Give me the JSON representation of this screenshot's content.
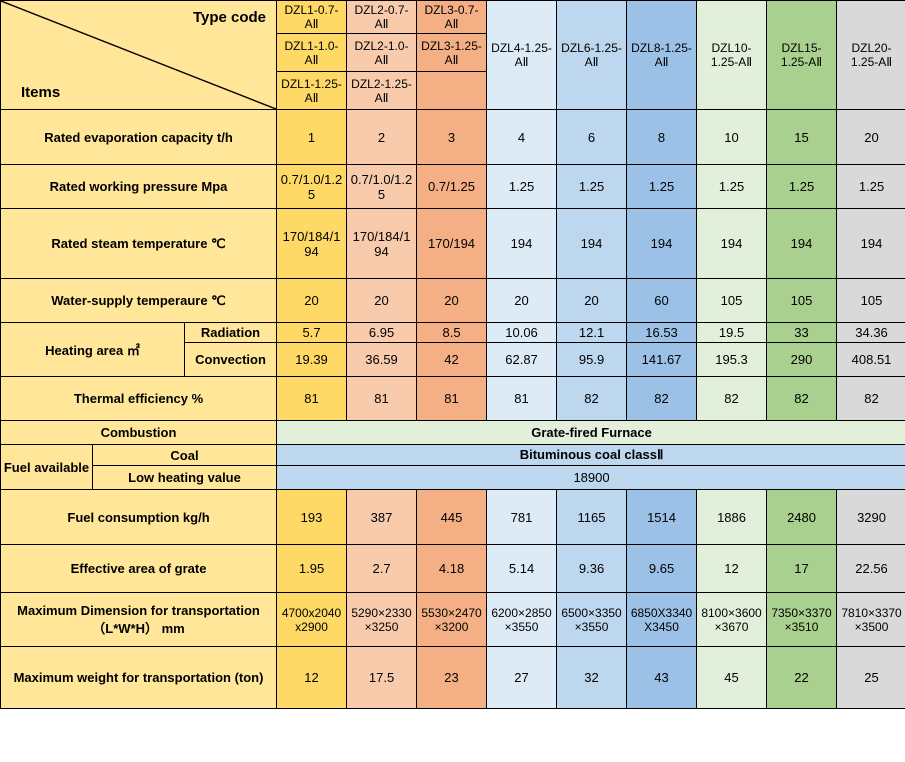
{
  "colors": {
    "label_bg": "#ffe699",
    "c1": "#ffd966",
    "c2": "#f8cbad",
    "c3": "#f4b084",
    "c4": "#ddebf7",
    "c5": "#bdd7ee",
    "c6": "#9bc2e6",
    "c7": "#e2efda",
    "c8": "#a9d08e",
    "c9": "#d9d9d9",
    "merge_blue": "#bdd7ee",
    "merge_green": "#e2efda"
  },
  "header": {
    "type_code": "Type code",
    "items": "Items",
    "h1": [
      "DZL1-0.7-AⅡ",
      "DZL2-0.7-AⅡ",
      "DZL3-0.7-AⅡ"
    ],
    "h2": [
      "DZL1-1.0-AⅡ",
      "DZL2-1.0-AⅡ",
      "DZL3-1.25-AⅡ"
    ],
    "h3": [
      "DZL1-1.25-AⅡ",
      "DZL2-1.25-AⅡ"
    ],
    "tall": [
      "DZL4-1.25-AⅡ",
      "DZL6-1.25-AⅡ",
      "DZL8-1.25-AⅡ",
      "DZL10-1.25-AⅡ",
      "DZL15-1.25-AⅡ",
      "DZL20-1.25-AⅡ"
    ]
  },
  "rows": {
    "evap_label": "Rated evaporation capacity t/h",
    "evap": [
      "1",
      "2",
      "3",
      "4",
      "6",
      "8",
      "10",
      "15",
      "20"
    ],
    "press_label": "Rated working pressure Mpa",
    "press": [
      "0.7/1.0/1.25",
      "0.7/1.0/1.25",
      "0.7/1.25",
      "1.25",
      "1.25",
      "1.25",
      "1.25",
      "1.25",
      "1.25"
    ],
    "steam_label": "Rated steam temperature ℃",
    "steam": [
      "170/184/194",
      "170/184/194",
      "170/194",
      "194",
      "194",
      "194",
      "194",
      "194",
      "194"
    ],
    "water_label": "Water-supply temperaure ℃",
    "water": [
      "20",
      "20",
      "20",
      "20",
      "20",
      "60",
      "105",
      "105",
      "105"
    ],
    "heat_label": "Heating area ㎡",
    "rad_label": "Radiation",
    "rad": [
      "5.7",
      "6.95",
      "8.5",
      "10.06",
      "12.1",
      "16.53",
      "19.5",
      "33",
      "34.36"
    ],
    "conv_label": "Convection",
    "conv": [
      "19.39",
      "36.59",
      "42",
      "62.87",
      "95.9",
      "141.67",
      "195.3",
      "290",
      "408.51"
    ],
    "eff_label": "Thermal efficiency  %",
    "eff": [
      "81",
      "81",
      "81",
      "81",
      "82",
      "82",
      "82",
      "82",
      "82"
    ],
    "combustion_label": "Combustion",
    "combustion_val": "Grate-fired Furnace",
    "fuel_label": "Fuel available",
    "coal_label": "Coal",
    "coal_val": "Bituminous coal classⅡ",
    "lhv_label": "Low heating value",
    "lhv_val": "18900",
    "cons_label": "Fuel consumption kg/h",
    "cons": [
      "193",
      "387",
      "445",
      "781",
      "1165",
      "1514",
      "1886",
      "2480",
      "3290"
    ],
    "grate_label": "Effective area of grate",
    "grate": [
      "1.95",
      "2.7",
      "4.18",
      "5.14",
      "9.36",
      "9.65",
      "12",
      "17",
      "22.56"
    ],
    "dim_label": "Maximum Dimension for transportation（L*W*H） mm",
    "dim": [
      "4700x2040x2900",
      "5290×2330×3250",
      "5530×2470×3200",
      "6200×2850×3550",
      "6500×3350×3550",
      "6850X3340X3450",
      "8100×3600×3670",
      "7350×3370×3510",
      "7810×3370×3500"
    ],
    "wt_label": "Maximum weight for transportation (ton)",
    "wt": [
      "12",
      "17.5",
      "23",
      "27",
      "32",
      "43",
      "45",
      "22",
      "25"
    ]
  },
  "widths": {
    "col0": 92,
    "col1": 92,
    "col2": 92,
    "data": 70
  }
}
